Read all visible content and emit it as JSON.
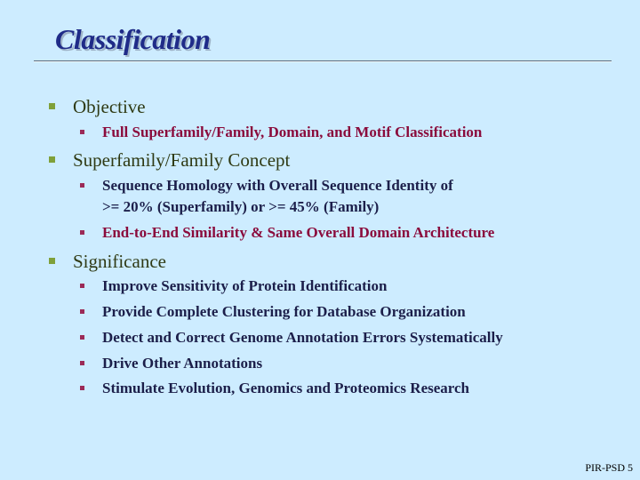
{
  "title": "Classification",
  "sections": [
    {
      "heading": "Objective",
      "items": [
        {
          "text": "Full Superfamily/Family, Domain, and Motif Classification"
        }
      ]
    },
    {
      "heading": "Superfamily/Family Concept",
      "items": [
        {
          "line1": "Sequence Homology with Overall Sequence Identity of",
          "line2": ">= 20% (Superfamily) or >= 45% (Family)"
        },
        {
          "text": "End-to-End Similarity & Same Overall Domain Architecture"
        }
      ]
    },
    {
      "heading": "Significance",
      "items": [
        {
          "text": "Improve Sensitivity of Protein Identification"
        },
        {
          "text": "Provide Complete Clustering for Database Organization"
        },
        {
          "text": "Detect and Correct Genome Annotation Errors Systematically"
        },
        {
          "text": "Drive Other Annotations"
        },
        {
          "text": "Stimulate Evolution, Genomics and Proteomics Research"
        }
      ]
    }
  ],
  "footer": "PIR-PSD 5",
  "colors": {
    "background": "#cdecff",
    "title": "#1f2b88",
    "level1_text": "#2f3a14",
    "level1_bullet": "#7fa03a",
    "level2_red": "#8a0b3c",
    "level2_navy": "#1c1f4a",
    "level2_bullet": "#9b2a57"
  }
}
